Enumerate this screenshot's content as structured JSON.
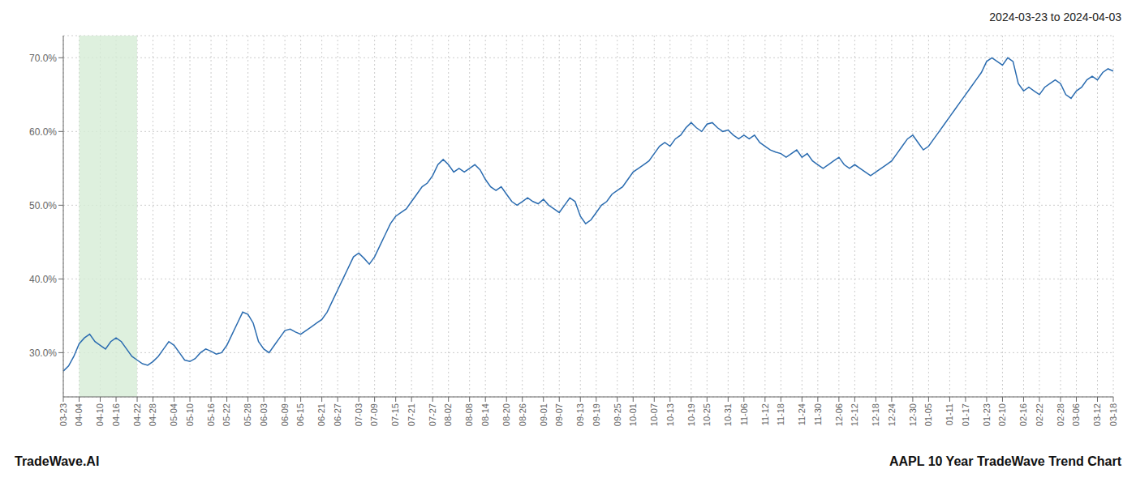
{
  "chart_data": {
    "type": "line",
    "title": "AAPL 10 Year TradeWave Trend Chart",
    "subtitle": "2024-03-23 to 2024-04-03",
    "annotations": [
      "TradeWave.AI"
    ],
    "color": "#2b6cb0",
    "grid": true,
    "shaded_range": {
      "from": "04-04",
      "to": "04-22",
      "color": "#d6ecd6"
    },
    "categories": [
      "03-23",
      null,
      null,
      "04-04",
      null,
      null,
      null,
      "04-10",
      null,
      null,
      "04-16",
      null,
      null,
      null,
      "04-22",
      null,
      null,
      "04-28",
      null,
      null,
      null,
      "05-04",
      null,
      null,
      "05-10",
      null,
      null,
      null,
      "05-16",
      null,
      null,
      "05-22",
      null,
      null,
      null,
      "05-28",
      null,
      null,
      "06-03",
      null,
      null,
      null,
      "06-09",
      null,
      null,
      "06-15",
      null,
      null,
      null,
      "06-21",
      null,
      null,
      "06-27",
      null,
      null,
      null,
      "07-03",
      null,
      null,
      "07-09",
      null,
      null,
      null,
      "07-15",
      null,
      null,
      "07-21",
      null,
      null,
      null,
      "07-27",
      null,
      null,
      "08-02",
      null,
      null,
      null,
      "08-08",
      null,
      null,
      "08-14",
      null,
      null,
      null,
      "08-20",
      null,
      null,
      "08-26",
      null,
      null,
      null,
      "09-01",
      null,
      null,
      "09-07",
      null,
      null,
      null,
      "09-13",
      null,
      null,
      "09-19",
      null,
      null,
      null,
      "09-25",
      null,
      null,
      "10-01",
      null,
      null,
      null,
      "10-07",
      null,
      null,
      "10-13",
      null,
      null,
      null,
      "10-19",
      null,
      null,
      "10-25",
      null,
      null,
      null,
      "10-31",
      null,
      null,
      "11-06",
      null,
      null,
      null,
      "11-12",
      null,
      null,
      "11-18",
      null,
      null,
      null,
      "11-24",
      null,
      null,
      "11-30",
      null,
      null,
      null,
      "12-06",
      null,
      null,
      "12-12",
      null,
      null,
      null,
      "12-18",
      null,
      null,
      "12-24",
      null,
      null,
      null,
      "12-30",
      null,
      null,
      "01-05",
      null,
      null,
      null,
      "01-11",
      null,
      null,
      "01-17",
      null,
      null,
      null,
      "01-23",
      null,
      null,
      "02-10",
      null,
      null,
      null,
      "02-16",
      null,
      null,
      "02-22",
      null,
      null,
      null,
      "02-28",
      null,
      null,
      "03-06",
      null,
      null,
      null,
      "03-12",
      null,
      null,
      "03-18"
    ],
    "values": [
      27.5,
      28.2,
      29.5,
      31.2,
      32.0,
      32.5,
      31.5,
      31.0,
      30.5,
      31.5,
      32.0,
      31.5,
      30.5,
      29.5,
      29.0,
      28.5,
      28.3,
      28.8,
      29.5,
      30.5,
      31.5,
      31.0,
      30.0,
      29.0,
      28.8,
      29.2,
      30.0,
      30.5,
      30.2,
      29.8,
      30.0,
      31.0,
      32.5,
      34.0,
      35.5,
      35.2,
      34.0,
      31.5,
      30.5,
      30.0,
      31.0,
      32.0,
      33.0,
      33.2,
      32.8,
      32.5,
      33.0,
      33.5,
      34.0,
      34.5,
      35.5,
      37.0,
      38.5,
      40.0,
      41.5,
      43.0,
      43.5,
      42.8,
      42.0,
      43.0,
      44.5,
      46.0,
      47.5,
      48.5,
      49.0,
      49.5,
      50.5,
      51.5,
      52.5,
      53.0,
      54.0,
      55.5,
      56.2,
      55.5,
      54.5,
      55.0,
      54.5,
      55.0,
      55.5,
      54.8,
      53.5,
      52.5,
      52.0,
      52.5,
      51.5,
      50.5,
      50.0,
      50.5,
      51.0,
      50.5,
      50.2,
      50.8,
      50.0,
      49.5,
      49.0,
      50.0,
      51.0,
      50.5,
      48.5,
      47.5,
      48.0,
      49.0,
      50.0,
      50.5,
      51.5,
      52.0,
      52.5,
      53.5,
      54.5,
      55.0,
      55.5,
      56.0,
      57.0,
      58.0,
      58.5,
      58.0,
      59.0,
      59.5,
      60.5,
      61.2,
      60.5,
      60.0,
      61.0,
      61.2,
      60.5,
      60.0,
      60.2,
      59.5,
      59.0,
      59.5,
      59.0,
      59.5,
      58.5,
      58.0,
      57.5,
      57.2,
      57.0,
      56.5,
      57.0,
      57.5,
      56.5,
      57.0,
      56.0,
      55.5,
      55.0,
      55.5,
      56.0,
      56.5,
      55.5,
      55.0,
      55.5,
      55.0,
      54.5,
      54.0,
      54.5,
      55.0,
      55.5,
      56.0,
      57.0,
      58.0,
      59.0,
      59.5,
      58.5,
      57.5,
      58.0,
      59.0,
      60.0,
      61.0,
      62.0,
      63.0,
      64.0,
      65.0,
      66.0,
      67.0,
      68.0,
      69.5,
      70.0,
      69.5,
      69.0,
      70.0,
      69.5,
      66.5,
      65.5,
      66.0,
      65.5,
      65.0,
      66.0,
      66.5,
      67.0,
      66.5,
      65.0,
      64.5,
      65.5,
      66.0,
      67.0,
      67.5,
      67.0,
      68.0,
      68.5,
      68.2
    ],
    "ylim": [
      24.0,
      73.0
    ],
    "yticks": [
      {
        "value": 30.0,
        "label": "30.0%"
      },
      {
        "value": 40.0,
        "label": "40.0%"
      },
      {
        "value": 50.0,
        "label": "50.0%"
      },
      {
        "value": 60.0,
        "label": "60.0%"
      },
      {
        "value": 70.0,
        "label": "70.0%"
      }
    ]
  }
}
